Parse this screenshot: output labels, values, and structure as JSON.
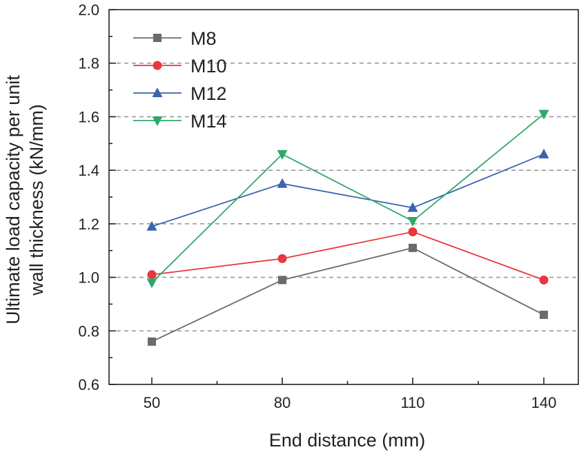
{
  "chart_data": {
    "type": "line",
    "xlabel": "End distance (mm)",
    "ylabel_line1": "Ultimate load capacity per unit",
    "ylabel_line2": "wall thickness (kN/mm)",
    "x": [
      50,
      80,
      110,
      140
    ],
    "x_tick_labels": [
      "50",
      "80",
      "110",
      "140"
    ],
    "ylim": [
      0.6,
      2.0
    ],
    "y_ticks": [
      0.6,
      0.8,
      1.0,
      1.2,
      1.4,
      1.6,
      1.8,
      2.0
    ],
    "y_tick_labels": [
      "0.6",
      "0.8",
      "1.0",
      "1.2",
      "1.4",
      "1.6",
      "1.8",
      "2.0"
    ],
    "grid": "horizontal dashed",
    "legend_position": "top-left",
    "series": [
      {
        "name": "M8",
        "values": [
          0.76,
          0.99,
          1.11,
          0.86
        ],
        "color": "#6b6b6b",
        "marker": "square"
      },
      {
        "name": "M10",
        "values": [
          1.01,
          1.07,
          1.17,
          0.99
        ],
        "color": "#e8373d",
        "marker": "circle"
      },
      {
        "name": "M12",
        "values": [
          1.19,
          1.35,
          1.26,
          1.46
        ],
        "color": "#3a63b0",
        "marker": "triangle-up"
      },
      {
        "name": "M14",
        "values": [
          0.98,
          1.46,
          1.21,
          1.61
        ],
        "color": "#2fa86a",
        "marker": "triangle-down"
      }
    ]
  }
}
